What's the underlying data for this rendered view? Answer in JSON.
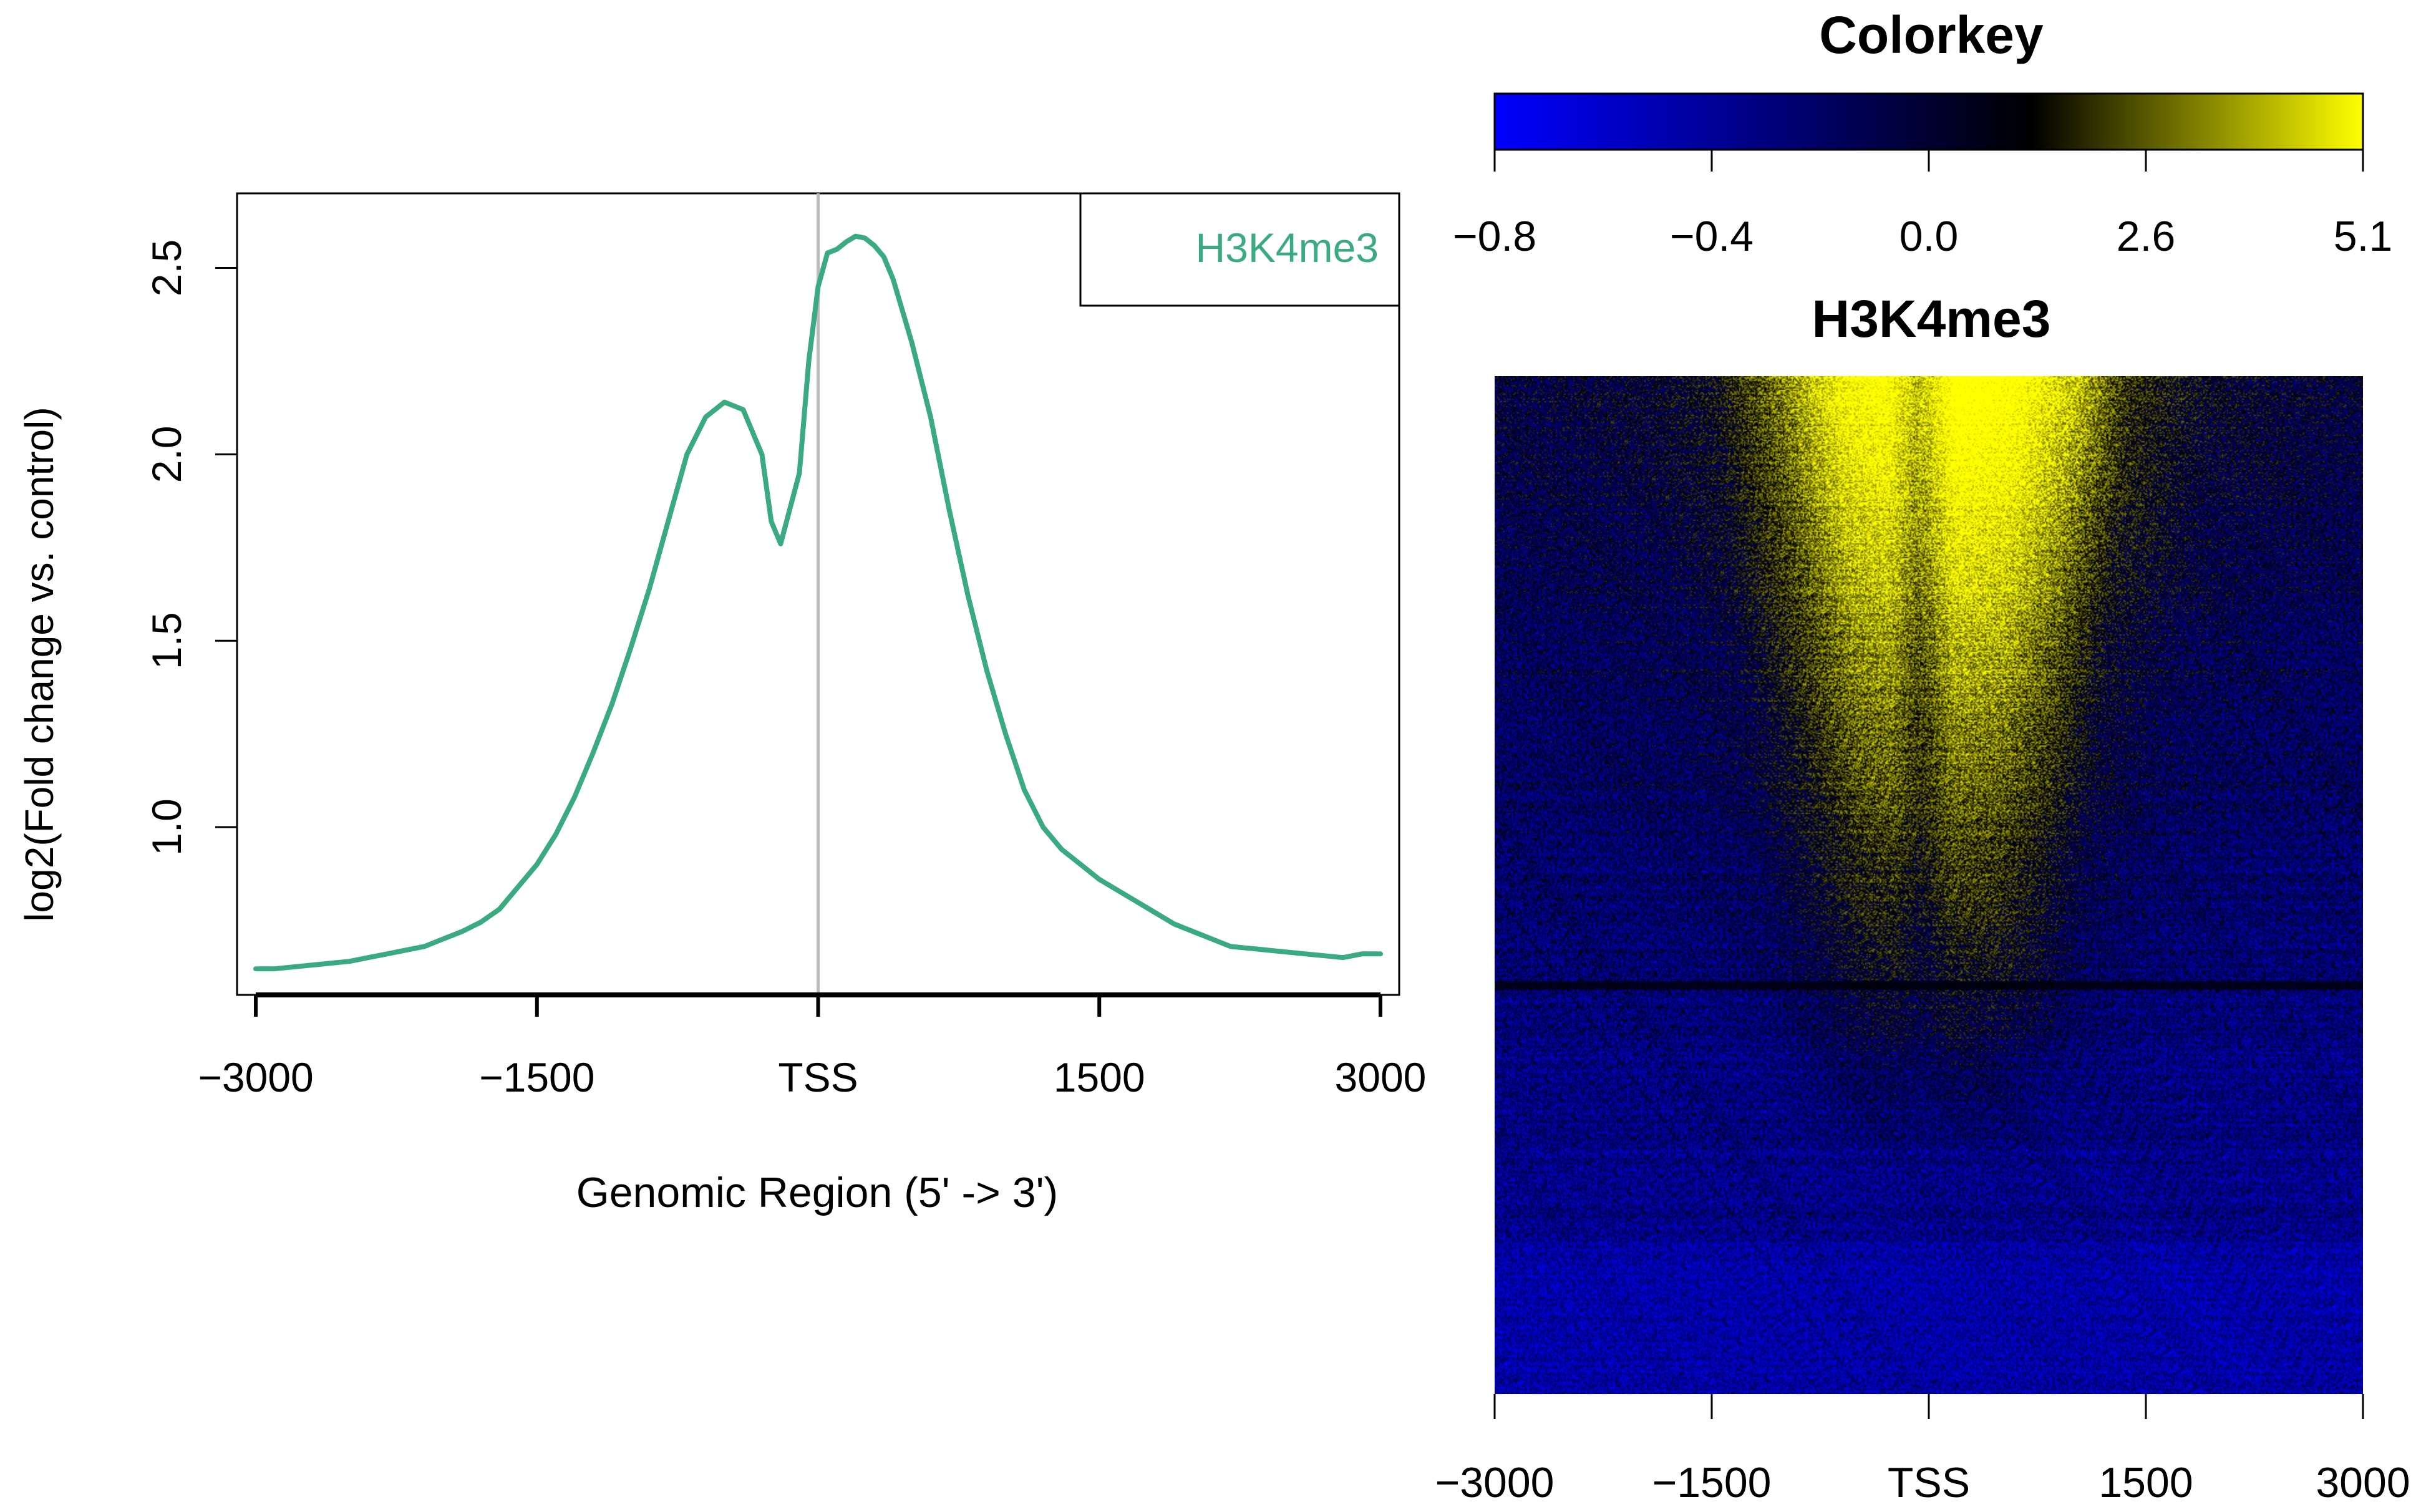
{
  "chart_data": [
    {
      "type": "line",
      "title": "",
      "xlabel": "Genomic Region (5' -> 3')",
      "ylabel": "log2(Fold change vs. control)",
      "xlim": [
        -3100,
        3100
      ],
      "ylim": [
        0.55,
        2.7
      ],
      "x_ticks": [
        -3000,
        -1500,
        0,
        1500,
        3000
      ],
      "x_tick_labels": [
        "−3000",
        "−1500",
        "TSS",
        "1500",
        "3000"
      ],
      "y_ticks": [
        1.0,
        1.5,
        2.0,
        2.5
      ],
      "y_tick_labels": [
        "1.0",
        "1.5",
        "2.0",
        "2.5"
      ],
      "vline": {
        "x": 0,
        "color": "#bbbbbb"
      },
      "grid": false,
      "legend": {
        "position": "top-right",
        "entries": [
          "H3K4me3"
        ]
      },
      "series": [
        {
          "name": "H3K4me3",
          "color": "#3aaa80",
          "x": [
            -3000,
            -2900,
            -2800,
            -2700,
            -2600,
            -2500,
            -2400,
            -2300,
            -2200,
            -2100,
            -2000,
            -1900,
            -1800,
            -1700,
            -1600,
            -1500,
            -1400,
            -1300,
            -1200,
            -1100,
            -1000,
            -900,
            -800,
            -700,
            -600,
            -500,
            -400,
            -300,
            -250,
            -200,
            -100,
            -50,
            0,
            50,
            100,
            150,
            200,
            250,
            300,
            350,
            400,
            500,
            600,
            700,
            800,
            900,
            1000,
            1100,
            1200,
            1300,
            1400,
            1500,
            1600,
            1700,
            1800,
            1900,
            2000,
            2100,
            2200,
            2300,
            2400,
            2500,
            2600,
            2700,
            2800,
            2900,
            3000
          ],
          "y": [
            0.62,
            0.62,
            0.625,
            0.63,
            0.635,
            0.64,
            0.65,
            0.66,
            0.67,
            0.68,
            0.7,
            0.72,
            0.745,
            0.78,
            0.84,
            0.9,
            0.98,
            1.08,
            1.2,
            1.33,
            1.48,
            1.64,
            1.82,
            2.0,
            2.1,
            2.14,
            2.12,
            2.0,
            1.82,
            1.76,
            1.95,
            2.25,
            2.45,
            2.54,
            2.55,
            2.57,
            2.585,
            2.58,
            2.56,
            2.53,
            2.47,
            2.3,
            2.1,
            1.85,
            1.62,
            1.42,
            1.25,
            1.1,
            1.0,
            0.94,
            0.9,
            0.86,
            0.83,
            0.8,
            0.77,
            0.74,
            0.72,
            0.7,
            0.68,
            0.675,
            0.67,
            0.665,
            0.66,
            0.655,
            0.65,
            0.66,
            0.66
          ]
        }
      ]
    },
    {
      "type": "heatmap",
      "title": "H3K4me3",
      "x_ticks": [
        -3000,
        -1500,
        0,
        1500,
        3000
      ],
      "x_tick_labels": [
        "−3000",
        "−1500",
        "TSS",
        "1500",
        "3000"
      ],
      "color_low": "#0000ff",
      "color_mid": "#000000",
      "color_high": "#ffff00",
      "colorkey": {
        "title": "Colorkey",
        "tick_labels": [
          "−0.8",
          "−0.4",
          "0.0",
          "2.6",
          "5.1"
        ],
        "stops": [
          {
            "value": -0.8,
            "color": "#0000ff"
          },
          {
            "value": 0.0,
            "color": "#000000"
          },
          {
            "value": 5.1,
            "color": "#ffff00"
          }
        ]
      },
      "profile": {
        "description_rows": "rows sorted by signal",
        "x": [
          -3000,
          -2000,
          -1500,
          -1000,
          -600,
          -300,
          -100,
          0,
          200,
          600,
          1000,
          1400,
          2000,
          3000
        ],
        "peak_level": [
          0.15,
          0.18,
          0.25,
          0.55,
          0.85,
          0.92,
          0.7,
          0.75,
          1.0,
          0.95,
          0.7,
          0.35,
          0.2,
          0.15
        ]
      }
    }
  ]
}
